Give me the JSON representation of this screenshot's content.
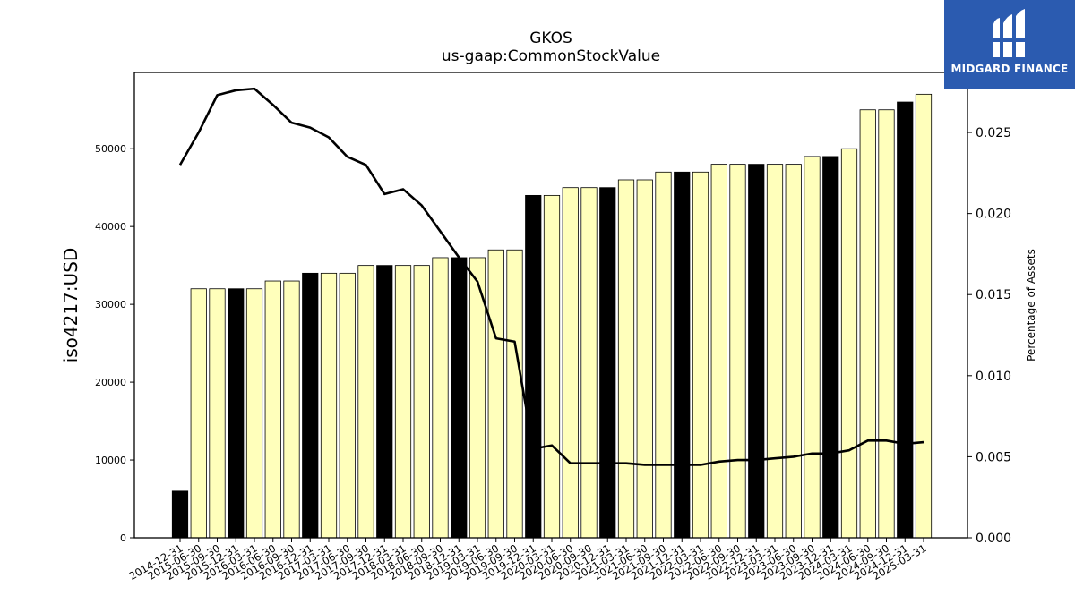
{
  "chart_data": {
    "type": "bar",
    "title": "GKOS",
    "subtitle": "us-gaap:CommonStockValue",
    "ylabel": "iso4217:USD",
    "y2label": "Percentage of Assets",
    "ylim": [
      0,
      59800
    ],
    "y2lim": [
      0,
      0.0287
    ],
    "yticks": [
      0,
      10000,
      20000,
      30000,
      40000,
      50000
    ],
    "y2ticks": [
      "0.000",
      "0.005",
      "0.010",
      "0.015",
      "0.020",
      "0.025"
    ],
    "categories": [
      "2014-12-31",
      "2015-06-30",
      "2015-09-30",
      "2015-12-31",
      "2016-03-31",
      "2016-06-30",
      "2016-09-30",
      "2016-12-31",
      "2017-03-31",
      "2017-06-30",
      "2017-09-30",
      "2017-12-31",
      "2018-03-31",
      "2018-06-30",
      "2018-09-30",
      "2018-12-31",
      "2019-03-31",
      "2019-06-30",
      "2019-09-30",
      "2019-12-31",
      "2020-03-31",
      "2020-06-30",
      "2020-09-30",
      "2020-12-31",
      "2021-03-31",
      "2021-06-30",
      "2021-09-30",
      "2021-12-31",
      "2022-03-31",
      "2022-06-30",
      "2022-09-30",
      "2022-12-31",
      "2023-03-31",
      "2023-06-30",
      "2023-09-30",
      "2023-12-31",
      "2024-03-31",
      "2024-06-30",
      "2024-09-30",
      "2024-12-31",
      "2025-03-31"
    ],
    "series": [
      {
        "kind": "bar",
        "values": [
          6000,
          32000,
          32000,
          32000,
          32000,
          33000,
          33000,
          34000,
          34000,
          34000,
          35000,
          35000,
          35000,
          35000,
          36000,
          36000,
          36000,
          37000,
          37000,
          44000,
          44000,
          45000,
          45000,
          45000,
          46000,
          46000,
          47000,
          47000,
          47000,
          48000,
          48000,
          48000,
          48000,
          48000,
          49000,
          49000,
          50000,
          55000,
          55000,
          56000,
          57000
        ],
        "annual_flags": [
          1,
          0,
          0,
          1,
          0,
          0,
          0,
          1,
          0,
          0,
          0,
          1,
          0,
          0,
          0,
          1,
          0,
          0,
          0,
          1,
          0,
          0,
          0,
          1,
          0,
          0,
          0,
          1,
          0,
          0,
          0,
          1,
          0,
          0,
          0,
          1,
          0,
          0,
          0,
          1,
          0
        ]
      },
      {
        "kind": "line",
        "axis": "right",
        "values": [
          0.023,
          0.025,
          0.0273,
          0.0276,
          0.0277,
          0.0267,
          0.0256,
          0.0253,
          0.0247,
          0.0235,
          0.023,
          0.0212,
          0.0215,
          0.0205,
          0.0189,
          0.0173,
          0.0158,
          0.0123,
          0.0121,
          0.0055,
          0.0057,
          0.0046,
          0.0046,
          0.0046,
          0.0046,
          0.0045,
          0.0045,
          0.0045,
          0.0045,
          0.0047,
          0.0048,
          0.0048,
          0.0049,
          0.005,
          0.0052,
          0.0052,
          0.0054,
          0.006,
          0.006,
          0.0058,
          0.0059
        ]
      }
    ],
    "colors": {
      "annual_bar": "#000000",
      "quarter_bar": "#ffffbb",
      "bar_edge": "#000000",
      "line": "#000000"
    },
    "grid": false,
    "legend": "none"
  },
  "logo": {
    "text": "MIDGARD FINANCE",
    "icon": "midgard-logo-icon",
    "background": "#2b5bb0"
  }
}
